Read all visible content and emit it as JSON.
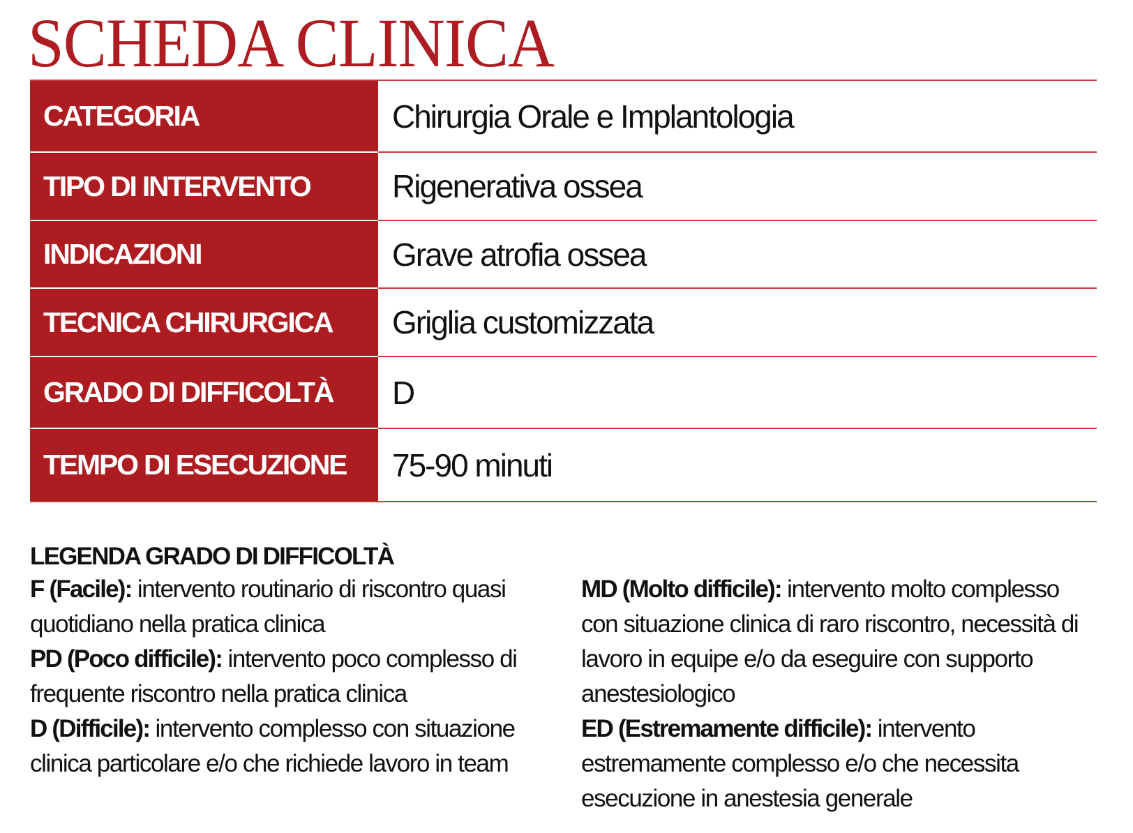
{
  "title": "SCHEDA CLINICA",
  "colors": {
    "accent": "#ad1c20"
  },
  "rows": [
    {
      "label": "CATEGORIA",
      "value": "Chirurgia Orale e Implantologia"
    },
    {
      "label": "TIPO DI INTERVENTO",
      "value": "Rigenerativa ossea"
    },
    {
      "label": "INDICAZIONI",
      "value": "Grave atrofia ossea"
    },
    {
      "label": "TECNICA CHIRURGICA",
      "value": "Griglia customizzata"
    },
    {
      "label": "GRADO DI DIFFICOLTÀ",
      "value": "D"
    },
    {
      "label": "TEMPO DI ESECUZIONE",
      "value": "75-90 minuti"
    }
  ],
  "legend": {
    "title": "LEGENDA GRADO DI DIFFICOLTÀ",
    "left": [
      {
        "term": "F (Facile):",
        "desc": " intervento routinario di riscontro quasi quotidiano nella pratica clinica"
      },
      {
        "term": "PD (Poco difficile):",
        "desc": " intervento poco complesso di frequente riscontro nella pratica clinica"
      },
      {
        "term": "D (Difficile):",
        "desc": " intervento complesso con situazione clinica particolare e/o che richiede lavoro in team"
      }
    ],
    "right": [
      {
        "term": "MD (Molto difficile):",
        "desc": " intervento molto complesso con situazione clinica di raro riscontro, necessità di lavoro in equipe e/o da eseguire con supporto anestesiologico"
      },
      {
        "term": "ED (Estremamente difficile):",
        "desc": " intervento estremamente complesso e/o che necessita esecuzione in anestesia generale"
      }
    ]
  }
}
